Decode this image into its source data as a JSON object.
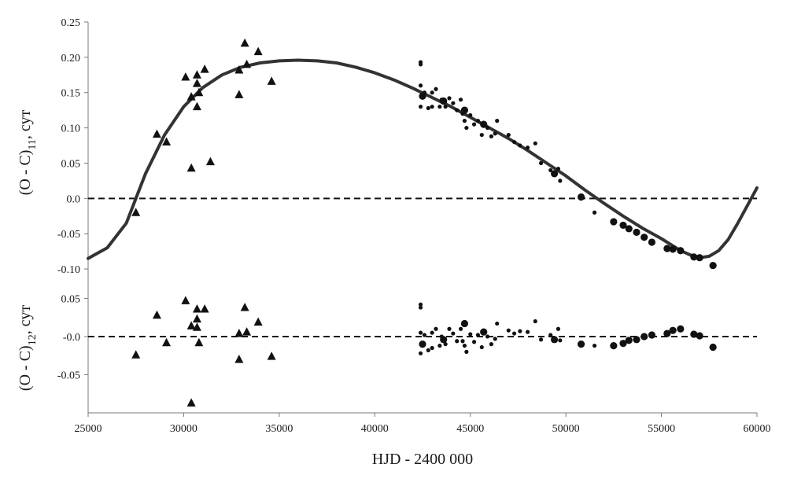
{
  "chart_data": {
    "type": "scatter",
    "xlabel": "HJD - 2400 000",
    "xlim": [
      25000,
      60000
    ],
    "xticks": [
      "25000",
      "30000",
      "35000",
      "40000",
      "45000",
      "50000",
      "55000",
      "60000"
    ],
    "grid": false,
    "panels": [
      {
        "ylabel": {
          "main": "(O - C)",
          "sub": "11",
          "unit": ", сут"
        },
        "ylim": [
          -0.12,
          0.25
        ],
        "yticks": [
          "0.25",
          "0.20",
          "0.15",
          "0.10",
          "0.05",
          "0.0",
          "-0.05",
          "-0.10"
        ],
        "zero_line": "dashed",
        "fit_curve": {
          "x": [
            25000,
            26000,
            27000,
            27500,
            28000,
            29000,
            30000,
            31000,
            32000,
            33000,
            34000,
            35000,
            36000,
            37000,
            38000,
            39000,
            40000,
            41000,
            42000,
            43000,
            44000,
            45000,
            46000,
            47000,
            48000,
            49000,
            50000,
            51000,
            52000,
            53000,
            54000,
            55000,
            56000,
            56500,
            57000,
            57500,
            58000,
            58500,
            59000,
            59500,
            60000
          ],
          "y": [
            -0.085,
            -0.07,
            -0.035,
            0.0,
            0.035,
            0.09,
            0.13,
            0.157,
            0.175,
            0.186,
            0.192,
            0.195,
            0.196,
            0.195,
            0.192,
            0.186,
            0.178,
            0.168,
            0.156,
            0.143,
            0.13,
            0.115,
            0.1,
            0.085,
            0.068,
            0.05,
            0.032,
            0.012,
            -0.007,
            -0.025,
            -0.042,
            -0.057,
            -0.074,
            -0.08,
            -0.084,
            -0.082,
            -0.074,
            -0.058,
            -0.035,
            -0.01,
            0.015
          ]
        },
        "series": [
          {
            "marker": "triangle",
            "points": [
              [
                27500,
                -0.02
              ],
              [
                28600,
                0.091
              ],
              [
                29100,
                0.08
              ],
              [
                30100,
                0.172
              ],
              [
                30400,
                0.043
              ],
              [
                30400,
                0.144
              ],
              [
                30700,
                0.163
              ],
              [
                30700,
                0.175
              ],
              [
                30700,
                0.13
              ],
              [
                30800,
                0.15
              ],
              [
                31100,
                0.183
              ],
              [
                31400,
                0.052
              ],
              [
                32900,
                0.182
              ],
              [
                32900,
                0.147
              ],
              [
                33200,
                0.22
              ],
              [
                33300,
                0.19
              ],
              [
                33900,
                0.208
              ],
              [
                34600,
                0.166
              ]
            ]
          },
          {
            "marker": "small-dot",
            "points": [
              [
                42400,
                0.193
              ],
              [
                42400,
                0.19
              ],
              [
                42400,
                0.16
              ],
              [
                42400,
                0.13
              ],
              [
                42600,
                0.15
              ],
              [
                42800,
                0.128
              ],
              [
                43000,
                0.15
              ],
              [
                43000,
                0.13
              ],
              [
                43200,
                0.155
              ],
              [
                43400,
                0.13
              ],
              [
                43500,
                0.14
              ],
              [
                43700,
                0.13
              ],
              [
                43900,
                0.142
              ],
              [
                44100,
                0.135
              ],
              [
                44300,
                0.125
              ],
              [
                44500,
                0.14
              ],
              [
                44600,
                0.12
              ],
              [
                44700,
                0.11
              ],
              [
                44800,
                0.1
              ],
              [
                45000,
                0.118
              ],
              [
                45200,
                0.105
              ],
              [
                45400,
                0.11
              ],
              [
                45600,
                0.09
              ],
              [
                45900,
                0.1
              ],
              [
                46100,
                0.088
              ],
              [
                46300,
                0.092
              ],
              [
                46400,
                0.11
              ],
              [
                47000,
                0.09
              ],
              [
                47300,
                0.08
              ],
              [
                47600,
                0.075
              ],
              [
                48000,
                0.072
              ],
              [
                48400,
                0.078
              ],
              [
                48700,
                0.05
              ],
              [
                49200,
                0.04
              ],
              [
                49600,
                0.042
              ],
              [
                49700,
                0.025
              ],
              [
                51500,
                -0.02
              ]
            ]
          },
          {
            "marker": "large-dot",
            "points": [
              [
                42500,
                0.145
              ],
              [
                43600,
                0.138
              ],
              [
                44700,
                0.125
              ],
              [
                45700,
                0.105
              ],
              [
                49400,
                0.035
              ],
              [
                50800,
                0.002
              ],
              [
                52500,
                -0.033
              ],
              [
                53000,
                -0.038
              ],
              [
                53300,
                -0.043
              ],
              [
                53700,
                -0.048
              ],
              [
                54100,
                -0.055
              ],
              [
                54500,
                -0.062
              ],
              [
                55300,
                -0.071
              ],
              [
                55600,
                -0.072
              ],
              [
                56000,
                -0.074
              ],
              [
                56700,
                -0.083
              ],
              [
                57000,
                -0.084
              ],
              [
                57700,
                -0.095
              ]
            ]
          }
        ]
      },
      {
        "ylabel": {
          "main": "(O - C)",
          "sub": "12",
          "unit": ", сут"
        },
        "ylim": [
          -0.1,
          0.07
        ],
        "yticks": [
          "0.05",
          "-0.0",
          "-0.05"
        ],
        "zero_line": "dashed",
        "series": [
          {
            "marker": "triangle",
            "points": [
              [
                27500,
                -0.024
              ],
              [
                28600,
                0.028
              ],
              [
                29100,
                -0.008
              ],
              [
                30100,
                0.047
              ],
              [
                30400,
                -0.087
              ],
              [
                30400,
                0.014
              ],
              [
                30700,
                0.023
              ],
              [
                30700,
                0.036
              ],
              [
                30700,
                0.012
              ],
              [
                30800,
                -0.008
              ],
              [
                31100,
                0.036
              ],
              [
                32900,
                0.004
              ],
              [
                32900,
                -0.03
              ],
              [
                33200,
                0.038
              ],
              [
                33300,
                0.006
              ],
              [
                33900,
                0.019
              ],
              [
                34600,
                -0.026
              ]
            ]
          },
          {
            "marker": "small-dot",
            "points": [
              [
                42400,
                0.042
              ],
              [
                42400,
                0.038
              ],
              [
                42400,
                0.005
              ],
              [
                42400,
                -0.022
              ],
              [
                42600,
                0.002
              ],
              [
                42800,
                -0.018
              ],
              [
                43000,
                0.005
              ],
              [
                43000,
                -0.015
              ],
              [
                43200,
                0.01
              ],
              [
                43400,
                -0.012
              ],
              [
                43500,
                0.0
              ],
              [
                43700,
                -0.01
              ],
              [
                43900,
                0.01
              ],
              [
                44100,
                0.004
              ],
              [
                44300,
                -0.006
              ],
              [
                44500,
                0.01
              ],
              [
                44600,
                -0.006
              ],
              [
                44700,
                -0.012
              ],
              [
                44800,
                -0.02
              ],
              [
                45000,
                0.003
              ],
              [
                45200,
                -0.007
              ],
              [
                45400,
                0.002
              ],
              [
                45600,
                -0.014
              ],
              [
                45900,
                0.0
              ],
              [
                46100,
                -0.01
              ],
              [
                46300,
                -0.003
              ],
              [
                46400,
                0.017
              ],
              [
                47000,
                0.008
              ],
              [
                47300,
                0.004
              ],
              [
                47600,
                0.007
              ],
              [
                48000,
                0.006
              ],
              [
                48400,
                0.02
              ],
              [
                48700,
                -0.004
              ],
              [
                49200,
                0.002
              ],
              [
                49600,
                0.01
              ],
              [
                49700,
                -0.005
              ],
              [
                51500,
                -0.012
              ]
            ]
          },
          {
            "marker": "large-dot",
            "points": [
              [
                42500,
                -0.01
              ],
              [
                43600,
                -0.004
              ],
              [
                44700,
                0.017
              ],
              [
                45700,
                0.006
              ],
              [
                49400,
                -0.004
              ],
              [
                50800,
                -0.01
              ],
              [
                52500,
                -0.012
              ],
              [
                53000,
                -0.009
              ],
              [
                53300,
                -0.005
              ],
              [
                53700,
                -0.004
              ],
              [
                54100,
                0.0
              ],
              [
                54500,
                0.002
              ],
              [
                55300,
                0.004
              ],
              [
                55600,
                0.008
              ],
              [
                56000,
                0.01
              ],
              [
                56700,
                0.003
              ],
              [
                57000,
                0.001
              ],
              [
                57700,
                -0.014
              ]
            ]
          }
        ]
      }
    ]
  }
}
